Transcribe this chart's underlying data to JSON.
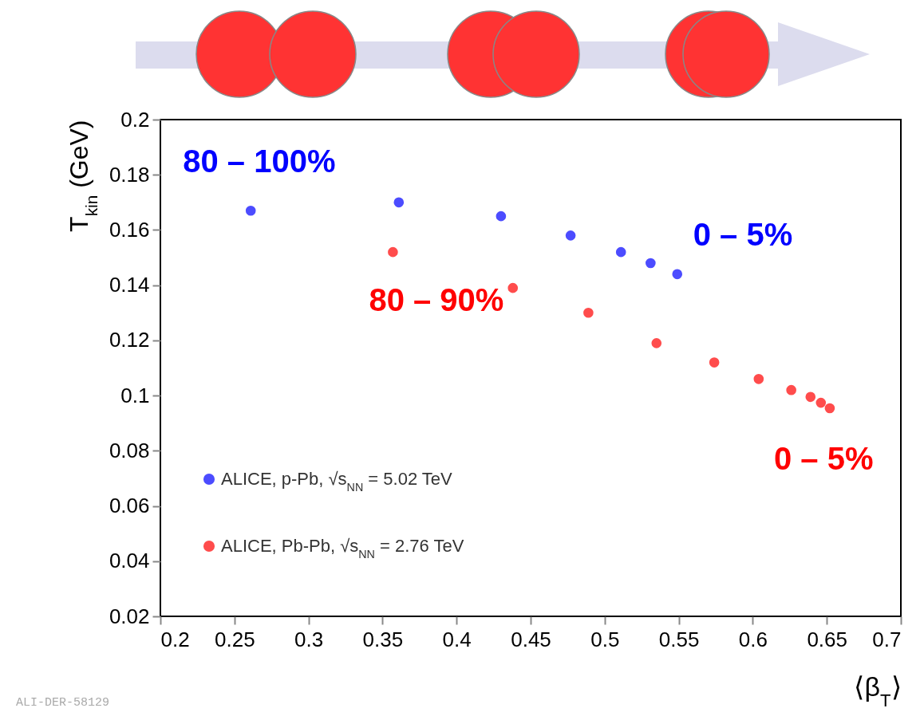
{
  "chart_data": {
    "type": "scatter",
    "xlabel": "⟨β$_{T}$⟩",
    "ylabel": "T$_{kin}$ (GeV)",
    "xlim": [
      0.2,
      0.7
    ],
    "xticks": [
      0.2,
      0.25,
      0.3,
      0.35,
      0.4,
      0.45,
      0.5,
      0.55,
      0.6,
      0.65,
      0.7
    ],
    "ylim": [
      0.02,
      0.2
    ],
    "yticks": [
      0.02,
      0.04,
      0.06,
      0.08,
      0.1,
      0.12,
      0.14,
      0.16,
      0.18,
      0.2
    ],
    "marker": "circle",
    "legend": "bottom left",
    "series": [
      {
        "name": "ALICE, p-Pb, √s$_{NN}$ = 5.02 TeV",
        "color": "#0000ff",
        "x": [
          0.261,
          0.361,
          0.43,
          0.477,
          0.511,
          0.531,
          0.549
        ],
        "values": [
          0.167,
          0.17,
          0.165,
          0.158,
          0.152,
          0.148,
          0.144
        ]
      },
      {
        "name": "ALICE, Pb-Pb, √s$_{NN}$ = 2.76 TeV",
        "color": "#ff0000",
        "x": [
          0.357,
          0.438,
          0.489,
          0.535,
          0.574,
          0.604,
          0.626,
          0.639,
          0.646,
          0.652
        ],
        "values": [
          0.152,
          0.139,
          0.13,
          0.119,
          0.112,
          0.106,
          0.102,
          0.0995,
          0.0974,
          0.0954
        ]
      }
    ],
    "annotations": [
      {
        "text": "80 – 100%",
        "x": 0.261,
        "y": 0.167
      },
      {
        "text": "0 – 5%",
        "x": 0.549,
        "y": 0.144
      },
      {
        "text": "80 – 90%",
        "x": 0.357,
        "y": 0.152
      },
      {
        "text": "0 – 5%",
        "x": 0.652,
        "y": 0.0954
      },
      "ALI-DER-58129"
    ]
  }
}
